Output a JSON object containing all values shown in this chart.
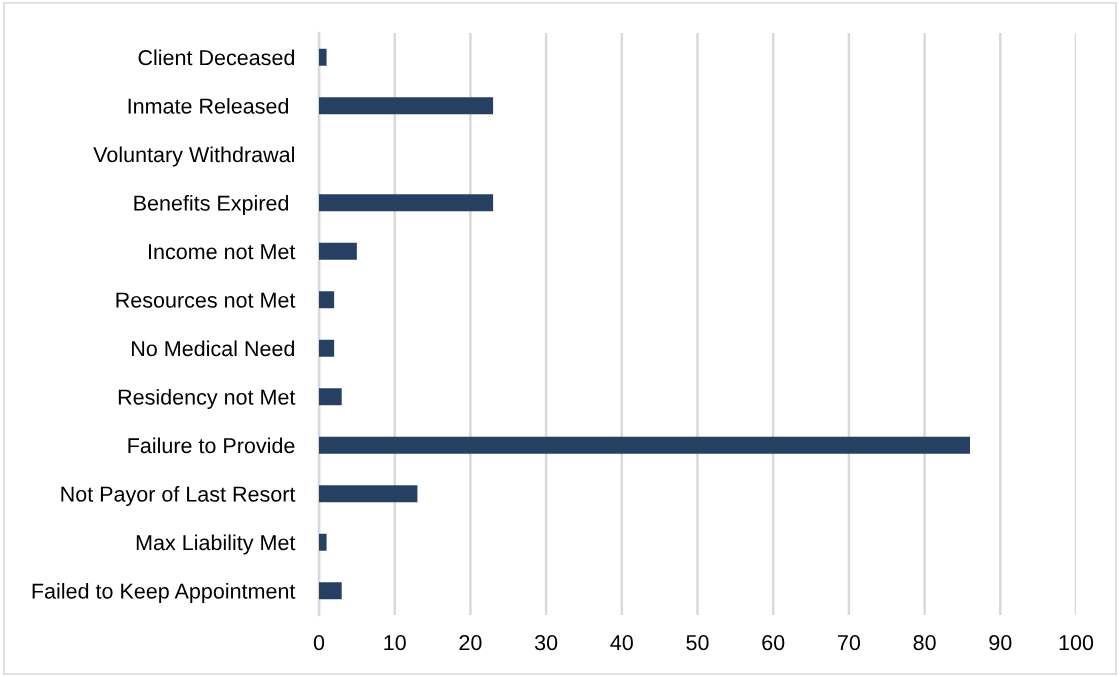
{
  "chart_data": {
    "type": "bar",
    "orientation": "horizontal",
    "categories": [
      "Client Deceased",
      "Inmate Released ",
      "Voluntary Withdrawal",
      "Benefits Expired ",
      "Income not Met",
      "Resources not Met",
      "No Medical Need",
      "Residency not Met",
      "Failure to Provide",
      "Not Payor of Last Resort",
      "Max Liability Met",
      "Failed to Keep Appointment"
    ],
    "values": [
      1,
      23,
      0,
      23,
      5,
      2,
      2,
      3,
      86,
      13,
      1,
      3
    ],
    "color": "#264062",
    "xlim": [
      0,
      100
    ],
    "xticks": [
      0,
      10,
      20,
      30,
      40,
      50,
      60,
      70,
      80,
      90,
      100
    ],
    "grid": "x"
  }
}
